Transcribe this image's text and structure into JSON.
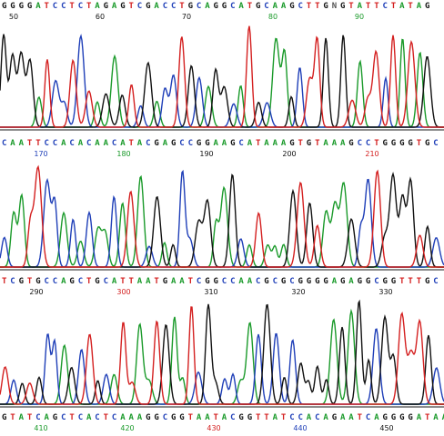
{
  "rows": [
    {
      "sequence": "GGGGATCCTCTAGAGTCGACCTGCAGGCATGCAAGCTTGNGTATTCTATAG",
      "positions": [
        "50",
        "60",
        "70",
        "80",
        "90"
      ]
    },
    {
      "sequence": "CAATTCCACACAACATACGAGCCGGAAGCATAAAGTGTAAAGCCTGGGGTGC",
      "positions": [
        "170",
        "180",
        "190",
        "200",
        "210"
      ]
    },
    {
      "sequence": "TCGTGCCAGCTGCATTAATGAATCGGCCAACGCGCGGGGAGAGGCGGTTTGC",
      "positions": [
        "290",
        "300",
        "310",
        "320",
        "330"
      ]
    },
    {
      "sequence": "GTATCAGCTCACTCAAAGGCGGTAATACGGTTATCCACAGAATCAGGGGATAA",
      "positions": [
        "410",
        "420",
        "430",
        "440",
        "450"
      ]
    }
  ]
}
